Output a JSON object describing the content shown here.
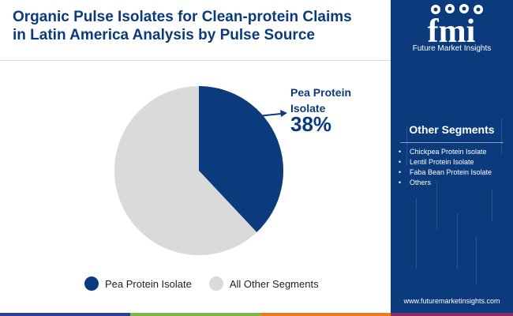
{
  "header": {
    "title_line1": "Organic Pulse Isolates for Clean-protein Claims",
    "title_line2": "in Latin America Analysis by Pulse Source"
  },
  "brand": {
    "logo_letters": "fmi",
    "logo_text": "Future Market Insights",
    "url": "www.futuremarketinsights.com"
  },
  "side_panel": {
    "title": "Other Segments",
    "items": [
      "Chickpea Protein Isolate",
      "Lentil Protein Isolate",
      "Faba Bean Protein Isolate",
      "Others"
    ]
  },
  "colors": {
    "primary": "#0b3b7c",
    "other": "#dadada",
    "bar": [
      "#2f3f8f",
      "#7ab648",
      "#e87d1e",
      "#8e2a6b"
    ]
  },
  "chart_data": {
    "type": "pie",
    "title": "Organic Pulse Isolates for Clean-protein Claims in Latin America Analysis by Pulse Source",
    "slices": [
      {
        "name": "Pea Protein Isolate",
        "value": 38,
        "label": "Pea Protein Isolate",
        "pct_label": "38%"
      },
      {
        "name": "All Other Segments",
        "value": 62
      }
    ],
    "legend": [
      "Pea Protein Isolate",
      "All Other Segments"
    ],
    "legend_position": "bottom"
  }
}
